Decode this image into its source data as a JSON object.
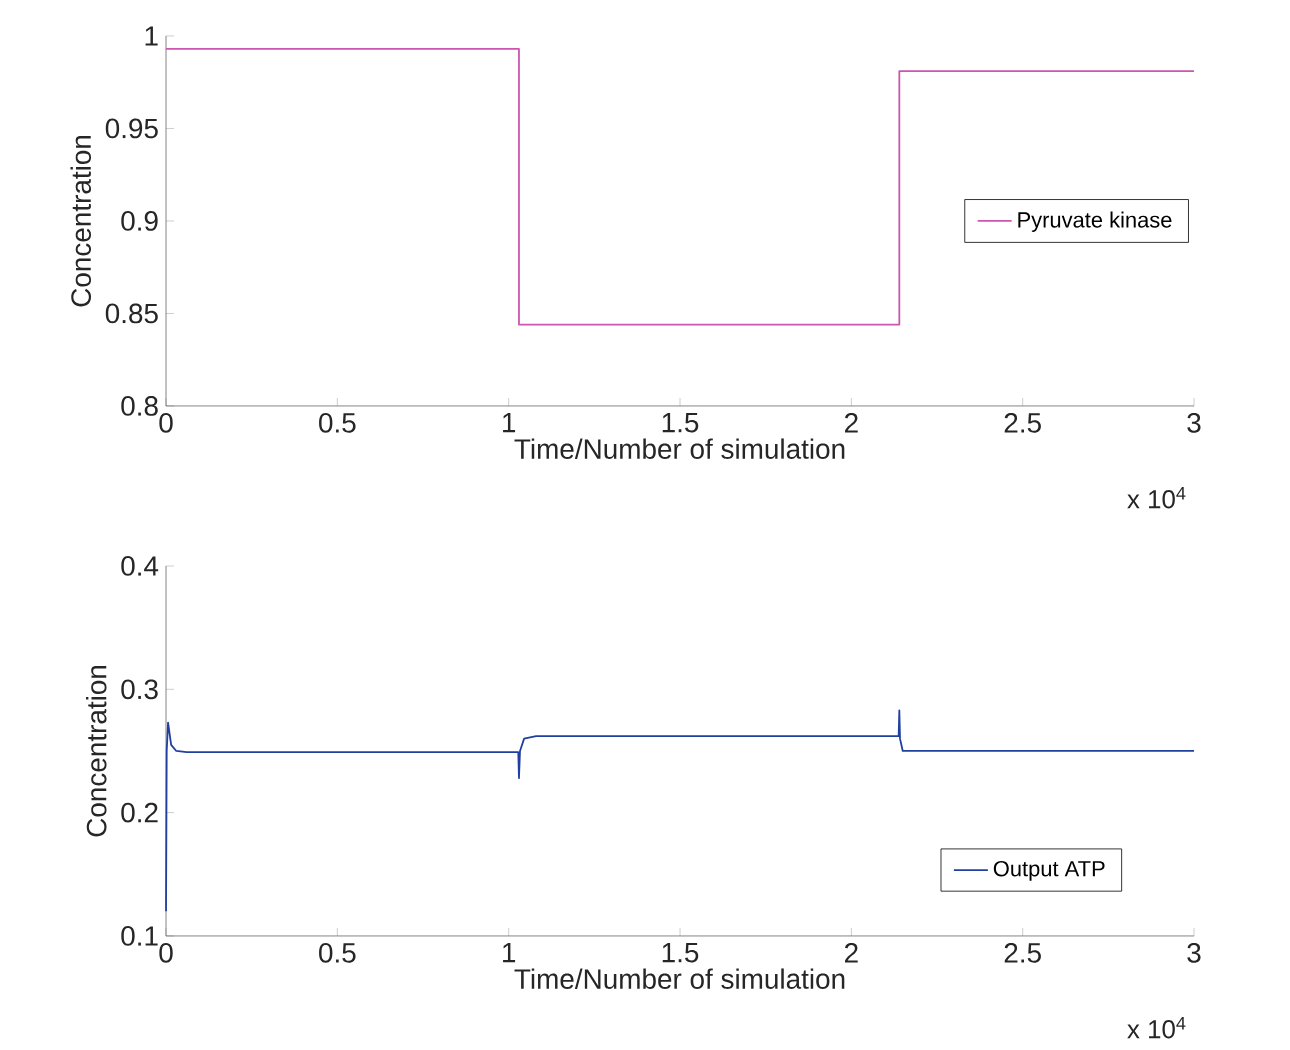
{
  "chart_data": [
    {
      "type": "step",
      "xlabel": "Time/Number of simulation",
      "ylabel": "Concentration",
      "x": [
        0,
        1.03,
        2.14,
        3
      ],
      "series": [
        {
          "name": "Pyruvate kinase",
          "color": "#cc55b0",
          "values": [
            0.993,
            0.844,
            0.981,
            0.981
          ]
        }
      ],
      "xlim": [
        0,
        3
      ],
      "xticks": [
        0,
        0.5,
        1,
        1.5,
        2,
        2.5,
        3
      ],
      "ylim": [
        0.8,
        1
      ],
      "yticks": [
        0.8,
        0.85,
        0.9,
        0.95,
        1
      ],
      "legend": "right",
      "annotations": [
        "x 10$^{4}$"
      ]
    },
    {
      "type": "line",
      "xlabel": "Time/Number of simulation",
      "ylabel": "Concentration",
      "x": [
        0,
        0.002,
        0.006,
        0.015,
        0.03,
        0.06,
        1.028,
        1.03,
        1.033,
        1.045,
        1.08,
        2.138,
        2.14,
        2.142,
        2.15,
        3
      ],
      "series": [
        {
          "name": "Output ATP",
          "color": "#2040a0",
          "values": [
            0.12,
            0.25,
            0.273,
            0.255,
            0.25,
            0.249,
            0.249,
            0.228,
            0.25,
            0.26,
            0.262,
            0.262,
            0.283,
            0.26,
            0.25,
            0.25
          ]
        }
      ],
      "xlim": [
        0,
        3
      ],
      "xticks": [
        0,
        0.5,
        1,
        1.5,
        2,
        2.5,
        3
      ],
      "ylim": [
        0.1,
        0.4
      ],
      "yticks": [
        0.1,
        0.2,
        0.3,
        0.4
      ],
      "legend": "bottom right",
      "annotations": [
        "x 10$^{4}$"
      ]
    }
  ]
}
